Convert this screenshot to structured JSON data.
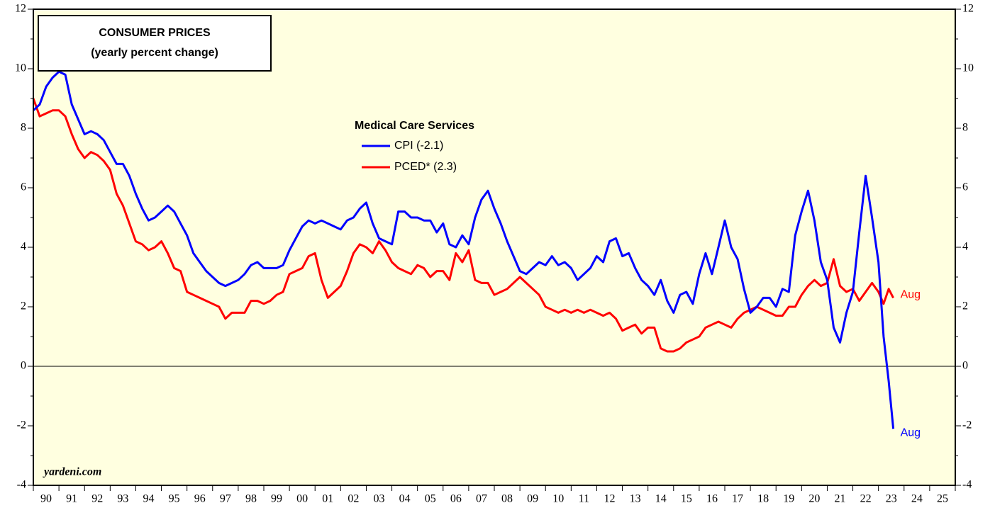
{
  "chart_data": {
    "type": "line",
    "title": [
      "CONSUMER PRICES",
      "(yearly percent change)"
    ],
    "legend_title": "Medical Care Services",
    "source": "yardeni.com",
    "x": [
      1990,
      1990.25,
      1990.5,
      1990.75,
      1991,
      1991.25,
      1991.5,
      1991.75,
      1992,
      1992.25,
      1992.5,
      1992.75,
      1993,
      1993.25,
      1993.5,
      1993.75,
      1994,
      1994.25,
      1994.5,
      1994.75,
      1995,
      1995.25,
      1995.5,
      1995.75,
      1996,
      1996.25,
      1996.5,
      1996.75,
      1997,
      1997.25,
      1997.5,
      1997.75,
      1998,
      1998.25,
      1998.5,
      1998.75,
      1999,
      1999.25,
      1999.5,
      1999.75,
      2000,
      2000.25,
      2000.5,
      2000.75,
      2001,
      2001.25,
      2001.5,
      2001.75,
      2002,
      2002.25,
      2002.5,
      2002.75,
      2003,
      2003.25,
      2003.5,
      2003.75,
      2004,
      2004.25,
      2004.5,
      2004.75,
      2005,
      2005.25,
      2005.5,
      2005.75,
      2006,
      2006.25,
      2006.5,
      2006.75,
      2007,
      2007.25,
      2007.5,
      2007.75,
      2008,
      2008.25,
      2008.5,
      2008.75,
      2009,
      2009.25,
      2009.5,
      2009.75,
      2010,
      2010.25,
      2010.5,
      2010.75,
      2011,
      2011.25,
      2011.5,
      2011.75,
      2012,
      2012.25,
      2012.5,
      2012.75,
      2013,
      2013.25,
      2013.5,
      2013.75,
      2014,
      2014.25,
      2014.5,
      2014.75,
      2015,
      2015.25,
      2015.5,
      2015.75,
      2016,
      2016.25,
      2016.5,
      2016.75,
      2017,
      2017.25,
      2017.5,
      2017.75,
      2018,
      2018.25,
      2018.5,
      2018.75,
      2019,
      2019.25,
      2019.5,
      2019.75,
      2020,
      2020.25,
      2020.5,
      2020.75,
      2021,
      2021.25,
      2021.5,
      2021.75,
      2022,
      2022.25,
      2022.5,
      2022.75,
      2023,
      2023.2,
      2023.4,
      2023.58
    ],
    "series": [
      {
        "name": "CPI (-2.1)",
        "color": "#0000ff",
        "end_label": "Aug",
        "values": [
          8.6,
          8.8,
          9.4,
          9.7,
          9.9,
          9.8,
          8.8,
          8.3,
          7.8,
          7.9,
          7.8,
          7.6,
          7.2,
          6.8,
          6.8,
          6.4,
          5.8,
          5.3,
          4.9,
          5.0,
          5.2,
          5.4,
          5.2,
          4.8,
          4.4,
          3.8,
          3.5,
          3.2,
          3.0,
          2.8,
          2.7,
          2.8,
          2.9,
          3.1,
          3.4,
          3.5,
          3.3,
          3.3,
          3.3,
          3.4,
          3.9,
          4.3,
          4.7,
          4.9,
          4.8,
          4.9,
          4.8,
          4.7,
          4.6,
          4.9,
          5.0,
          5.3,
          5.5,
          4.8,
          4.3,
          4.2,
          4.1,
          5.2,
          5.2,
          5.0,
          5.0,
          4.9,
          4.9,
          4.5,
          4.8,
          4.1,
          4.0,
          4.4,
          4.1,
          5.0,
          5.6,
          5.9,
          5.3,
          4.8,
          4.2,
          3.7,
          3.2,
          3.1,
          3.3,
          3.5,
          3.4,
          3.7,
          3.4,
          3.5,
          3.3,
          2.9,
          3.1,
          3.3,
          3.7,
          3.5,
          4.2,
          4.3,
          3.7,
          3.8,
          3.3,
          2.9,
          2.7,
          2.4,
          2.9,
          2.2,
          1.8,
          2.4,
          2.5,
          2.1,
          3.1,
          3.8,
          3.1,
          4.0,
          4.9,
          4.0,
          3.6,
          2.6,
          1.8,
          2.0,
          2.3,
          2.3,
          2.0,
          2.6,
          2.5,
          4.4,
          5.2,
          5.9,
          4.9,
          3.5,
          2.9,
          1.3,
          0.8,
          1.8,
          2.5,
          4.5,
          6.4,
          5.0,
          3.5,
          1.0,
          -0.5,
          -2.1
        ]
      },
      {
        "name": "PCED* (2.3)",
        "color": "#ff0000",
        "end_label": "Aug",
        "values": [
          9.0,
          8.4,
          8.5,
          8.6,
          8.6,
          8.4,
          7.8,
          7.3,
          7.0,
          7.2,
          7.1,
          6.9,
          6.6,
          5.8,
          5.4,
          4.8,
          4.2,
          4.1,
          3.9,
          4.0,
          4.2,
          3.8,
          3.3,
          3.2,
          2.5,
          2.4,
          2.3,
          2.2,
          2.1,
          2.0,
          1.6,
          1.8,
          1.8,
          1.8,
          2.2,
          2.2,
          2.1,
          2.2,
          2.4,
          2.5,
          3.1,
          3.2,
          3.3,
          3.7,
          3.8,
          2.9,
          2.3,
          2.5,
          2.7,
          3.2,
          3.8,
          4.1,
          4.0,
          3.8,
          4.2,
          3.9,
          3.5,
          3.3,
          3.2,
          3.1,
          3.4,
          3.3,
          3.0,
          3.2,
          3.2,
          2.9,
          3.8,
          3.5,
          3.9,
          2.9,
          2.8,
          2.8,
          2.4,
          2.5,
          2.6,
          2.8,
          3.0,
          2.8,
          2.6,
          2.4,
          2.0,
          1.9,
          1.8,
          1.9,
          1.8,
          1.9,
          1.8,
          1.9,
          1.8,
          1.7,
          1.8,
          1.6,
          1.2,
          1.3,
          1.4,
          1.1,
          1.3,
          1.3,
          0.6,
          0.5,
          0.5,
          0.6,
          0.8,
          0.9,
          1.0,
          1.3,
          1.4,
          1.5,
          1.4,
          1.3,
          1.6,
          1.8,
          1.9,
          2.0,
          1.9,
          1.8,
          1.7,
          1.7,
          2.0,
          2.0,
          2.4,
          2.7,
          2.9,
          2.7,
          2.8,
          3.6,
          2.7,
          2.5,
          2.6,
          2.2,
          2.5,
          2.8,
          2.5,
          2.1,
          2.6,
          2.3
        ]
      }
    ],
    "xlim": [
      1990,
      2026
    ],
    "xticks": [
      {
        "value": 1990.5,
        "label": "90"
      },
      {
        "value": 1991.5,
        "label": "91"
      },
      {
        "value": 1992.5,
        "label": "92"
      },
      {
        "value": 1993.5,
        "label": "93"
      },
      {
        "value": 1994.5,
        "label": "94"
      },
      {
        "value": 1995.5,
        "label": "95"
      },
      {
        "value": 1996.5,
        "label": "96"
      },
      {
        "value": 1997.5,
        "label": "97"
      },
      {
        "value": 1998.5,
        "label": "98"
      },
      {
        "value": 1999.5,
        "label": "99"
      },
      {
        "value": 2000.5,
        "label": "00"
      },
      {
        "value": 2001.5,
        "label": "01"
      },
      {
        "value": 2002.5,
        "label": "02"
      },
      {
        "value": 2003.5,
        "label": "03"
      },
      {
        "value": 2004.5,
        "label": "04"
      },
      {
        "value": 2005.5,
        "label": "05"
      },
      {
        "value": 2006.5,
        "label": "06"
      },
      {
        "value": 2007.5,
        "label": "07"
      },
      {
        "value": 2008.5,
        "label": "08"
      },
      {
        "value": 2009.5,
        "label": "09"
      },
      {
        "value": 2010.5,
        "label": "10"
      },
      {
        "value": 2011.5,
        "label": "11"
      },
      {
        "value": 2012.5,
        "label": "12"
      },
      {
        "value": 2013.5,
        "label": "13"
      },
      {
        "value": 2014.5,
        "label": "14"
      },
      {
        "value": 2015.5,
        "label": "15"
      },
      {
        "value": 2016.5,
        "label": "16"
      },
      {
        "value": 2017.5,
        "label": "17"
      },
      {
        "value": 2018.5,
        "label": "18"
      },
      {
        "value": 2019.5,
        "label": "19"
      },
      {
        "value": 2020.5,
        "label": "20"
      },
      {
        "value": 2021.5,
        "label": "21"
      },
      {
        "value": 2022.5,
        "label": "22"
      },
      {
        "value": 2023.5,
        "label": "23"
      },
      {
        "value": 2024.5,
        "label": "24"
      },
      {
        "value": 2025.5,
        "label": "25"
      }
    ],
    "ylim": [
      -4,
      12
    ],
    "yticks": [
      -4,
      -2,
      0,
      2,
      4,
      6,
      8,
      10,
      12
    ],
    "zero_line": true,
    "background": "#ffffe0"
  }
}
